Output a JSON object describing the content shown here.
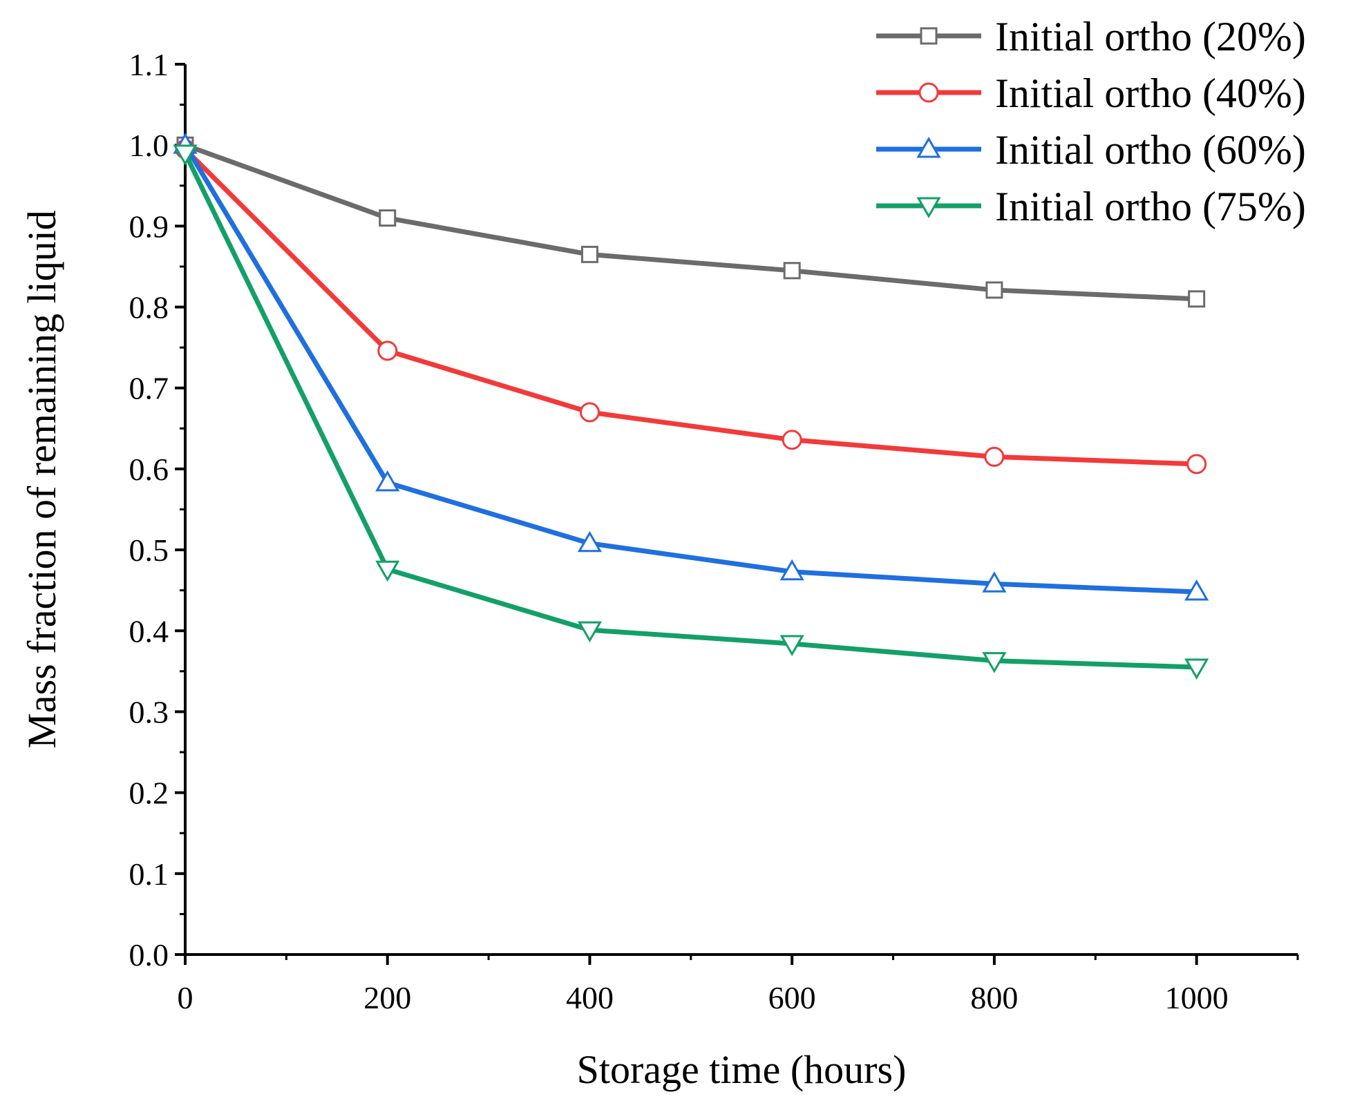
{
  "chart_data": {
    "type": "line",
    "title": "",
    "xlabel": "Storage time (hours)",
    "ylabel": "Mass fraction of remaining liquid",
    "xlim": [
      0,
      1100
    ],
    "ylim": [
      0.0,
      1.1
    ],
    "x_ticks": [
      0,
      200,
      400,
      600,
      800,
      1000
    ],
    "x_tick_labels": [
      "0",
      "200",
      "400",
      "600",
      "800",
      "1000"
    ],
    "y_ticks": [
      0.0,
      0.1,
      0.2,
      0.3,
      0.4,
      0.5,
      0.6,
      0.7,
      0.8,
      0.9,
      1.0,
      1.1
    ],
    "y_tick_labels": [
      "0.0",
      "0.1",
      "0.2",
      "0.3",
      "0.4",
      "0.5",
      "0.6",
      "0.7",
      "0.8",
      "0.9",
      "1.0",
      "1.1"
    ],
    "grid": false,
    "legend_position": "top-right",
    "x": [
      0,
      200,
      400,
      600,
      800,
      1000
    ],
    "series": [
      {
        "name": "Initial ortho (20%)",
        "color": "#6b6b6b",
        "marker": "square",
        "values": [
          1.0,
          0.91,
          0.865,
          0.845,
          0.821,
          0.81
        ]
      },
      {
        "name": "Initial ortho (40%)",
        "color": "#f23a3a",
        "marker": "circle",
        "values": [
          0.995,
          0.746,
          0.67,
          0.636,
          0.615,
          0.606
        ]
      },
      {
        "name": "Initial ortho (60%)",
        "color": "#1f6fe0",
        "marker": "triangle-up",
        "values": [
          1.0,
          0.583,
          0.508,
          0.473,
          0.458,
          0.448
        ]
      },
      {
        "name": "Initial ortho (75%)",
        "color": "#13a068",
        "marker": "triangle-down",
        "values": [
          0.99,
          0.476,
          0.401,
          0.384,
          0.363,
          0.355
        ]
      }
    ]
  }
}
